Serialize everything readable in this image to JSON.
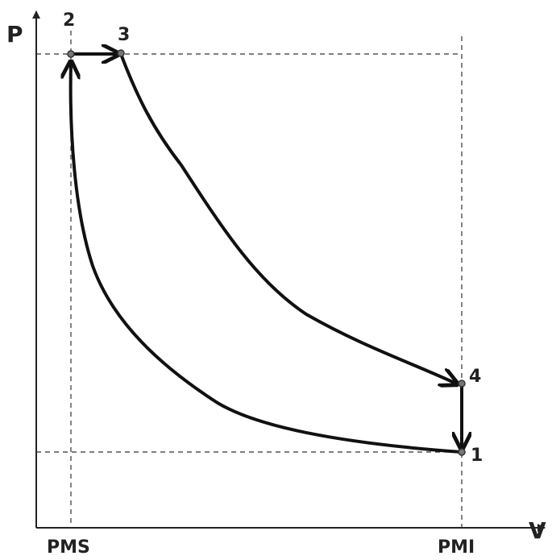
{
  "axes": {
    "y_label": "P",
    "x_label": "V"
  },
  "x_ticks": [
    "PMS",
    "PMI"
  ],
  "points": [
    {
      "label": "1"
    },
    {
      "label": "2"
    },
    {
      "label": "3"
    },
    {
      "label": "4"
    }
  ]
}
